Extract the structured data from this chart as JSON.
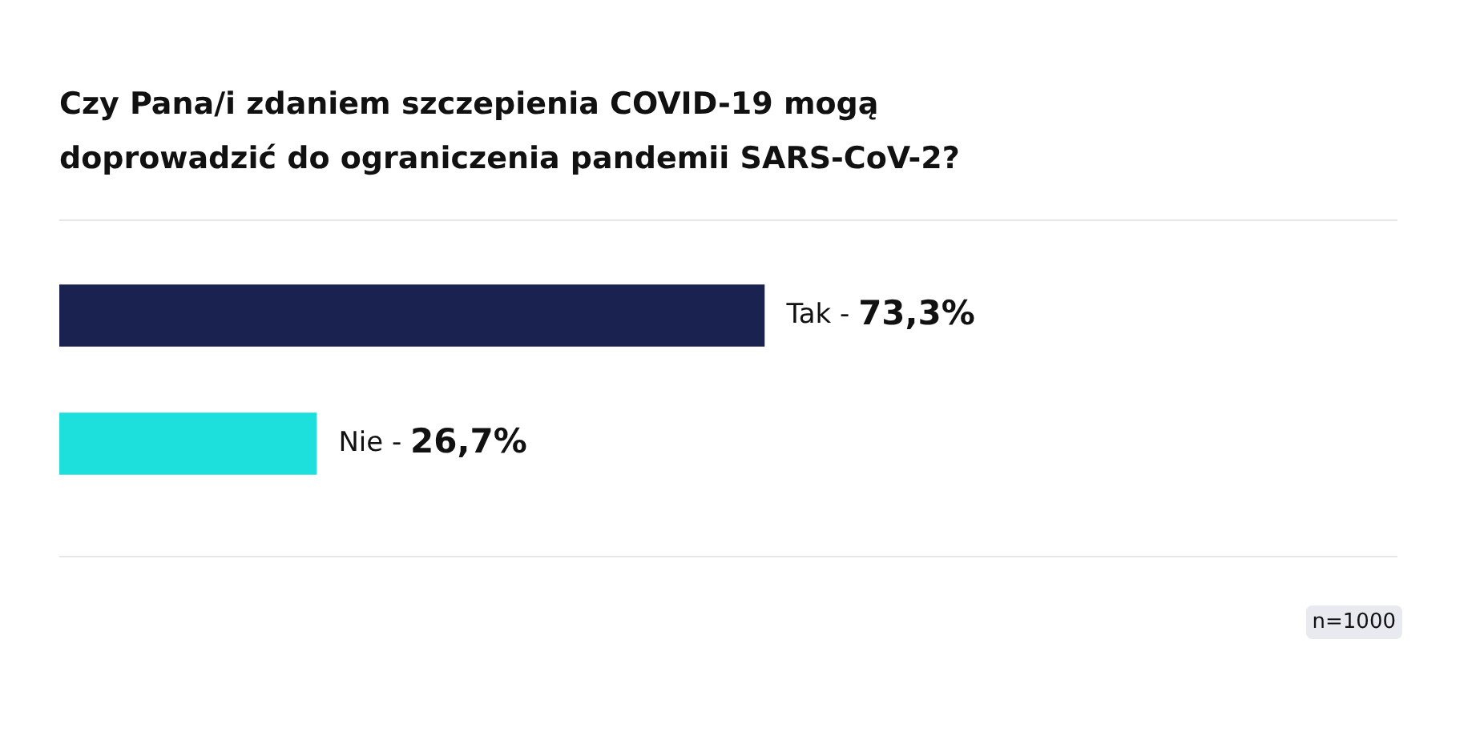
{
  "chart_data": {
    "type": "bar",
    "orientation": "horizontal",
    "title": "Czy Pana/i zdaniem szczepienia COVID-19 mogą doprowadzić do ograniczenia pandemii SARS-CoV-2?",
    "categories": [
      "Tak -",
      "Nie -"
    ],
    "values": [
      73.3,
      26.7
    ],
    "value_labels": [
      "73,3%",
      "26,7%"
    ],
    "colors": [
      "#1a2350",
      "#1de0dc"
    ],
    "legend": false,
    "annotations": [
      "n=1000"
    ]
  }
}
